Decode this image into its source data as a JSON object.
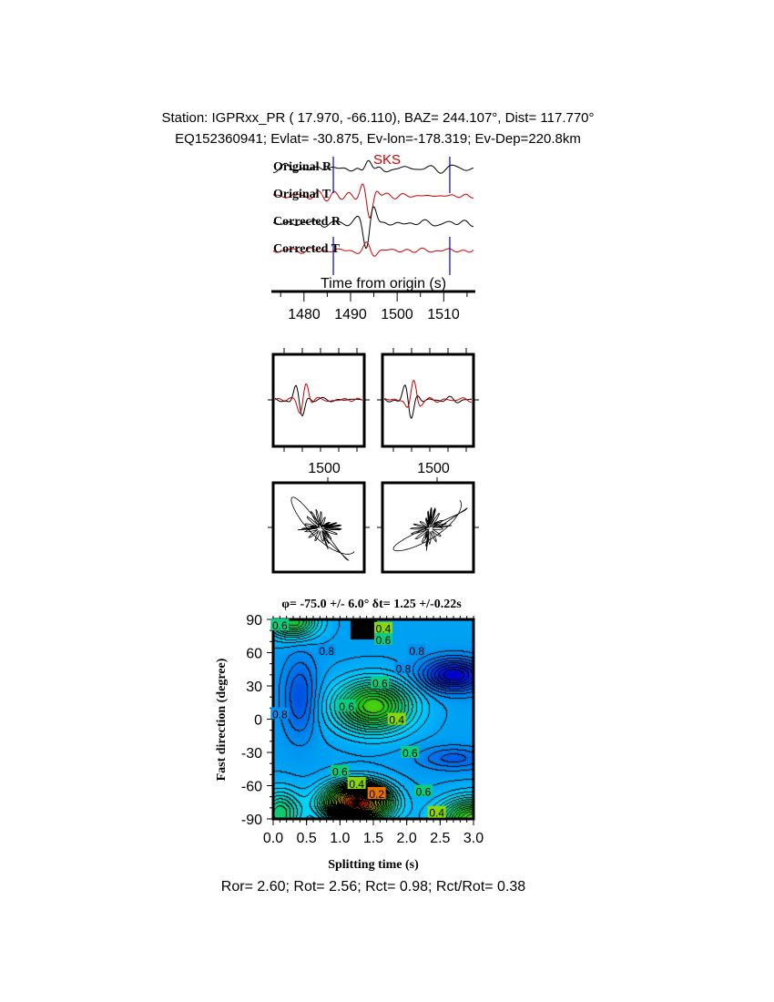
{
  "header": {
    "station_line": "Station: IGPRxx_PR (  17.970,  -66.110), BAZ=  244.107°, Dist=  117.770°",
    "event_line": "EQ152360941; Evlat= -30.875, Ev-lon=-178.319; Ev-Dep=220.8km"
  },
  "chart_data": [
    {
      "type": "line",
      "phase_label": "SKS",
      "trace_labels": [
        "Original R",
        "Original T",
        "Corrected R",
        "Corrected T"
      ],
      "trace_colors": [
        "#000000",
        "#cc0000",
        "#000000",
        "#cc0000"
      ],
      "xlabel": "Time from origin (s)",
      "xticks": [
        "1480",
        "1490",
        "1500",
        "1510"
      ],
      "xlim": [
        1473,
        1516
      ],
      "window_markers_s": [
        1486.3,
        1511.3
      ],
      "marker_color": "#0000cc"
    },
    {
      "type": "line",
      "panels": [
        "original R/T overlay",
        "corrected R/T overlay"
      ],
      "xtick_labels": [
        "1500",
        "1500"
      ]
    },
    {
      "type": "scatter",
      "panels": [
        "original particle motion",
        "corrected particle motion"
      ]
    },
    {
      "type": "heatmap",
      "title": "φ= -75.0 +/- 6.0° δt= 1.25 +/-0.22s",
      "xlabel": "Splitting time (s)",
      "ylabel": "Fast direction (degree)",
      "xlim": [
        0,
        3
      ],
      "ylim": [
        -90,
        90
      ],
      "xticks": [
        "0.0",
        "0.5",
        "1.0",
        "1.5",
        "2.0",
        "2.5",
        "3.0"
      ],
      "yticks": [
        "90",
        "60",
        "30",
        "0",
        "-30",
        "-60",
        "-90"
      ],
      "contour_labels": [
        "0.4",
        "0.6",
        "0.8",
        "0.8",
        "0.8",
        "0.6",
        "0.6",
        "0.4",
        "0.6",
        "0.6",
        "0.4",
        "0.2",
        "0.6",
        "0.4",
        "0.8",
        "0.6"
      ],
      "best_fit": {
        "dt": 1.25,
        "phi": -75.0
      },
      "colormap": [
        "#cc0000",
        "#ffff00",
        "#00cc00",
        "#00ffff",
        "#0000cc"
      ]
    }
  ],
  "footer": {
    "ratios": "Ror= 2.60; Rot= 2.56; Rct= 0.98; Rct/Rot= 0.38"
  }
}
